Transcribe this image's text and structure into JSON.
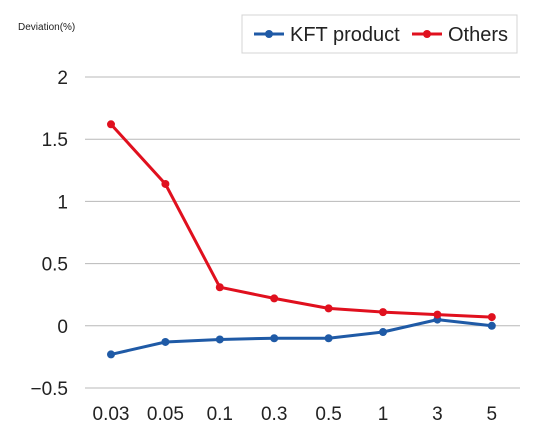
{
  "chart_data": {
    "type": "line",
    "ylabel": "Deviation(%)",
    "xlabel": "",
    "categories": [
      "0.03",
      "0.05",
      "0.1",
      "0.3",
      "0.5",
      "1",
      "3",
      "5"
    ],
    "ylim": [
      -0.5,
      2
    ],
    "yticks": [
      2,
      1.5,
      1,
      0.5,
      0,
      -0.5
    ],
    "ytick_labels": [
      "2",
      "1.5",
      "1",
      "0.5",
      "0",
      "−0.5"
    ],
    "grid": "horizontal",
    "legend_position": "top-right",
    "series": [
      {
        "name": "KFT product",
        "color": "#1f5aa6",
        "values": [
          -0.23,
          -0.13,
          -0.11,
          -0.1,
          -0.1,
          -0.05,
          0.05,
          0.0
        ]
      },
      {
        "name": "Others",
        "color": "#e0101e",
        "values": [
          1.62,
          1.14,
          0.31,
          0.22,
          0.14,
          0.11,
          0.09,
          0.07
        ]
      }
    ]
  }
}
